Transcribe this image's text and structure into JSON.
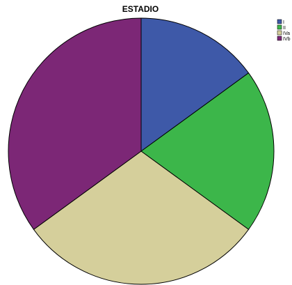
{
  "chart_data": {
    "type": "pie",
    "title": "ESTADIO",
    "categories": [
      "I",
      "II",
      "IVa",
      "IVb"
    ],
    "values": [
      15,
      20,
      30,
      35
    ],
    "colors": [
      "#3e59a8",
      "#3cb64a",
      "#d5cf9b",
      "#7c2776"
    ],
    "start_angle_deg": 0,
    "direction": "clockwise",
    "legend_position": "top-right"
  }
}
